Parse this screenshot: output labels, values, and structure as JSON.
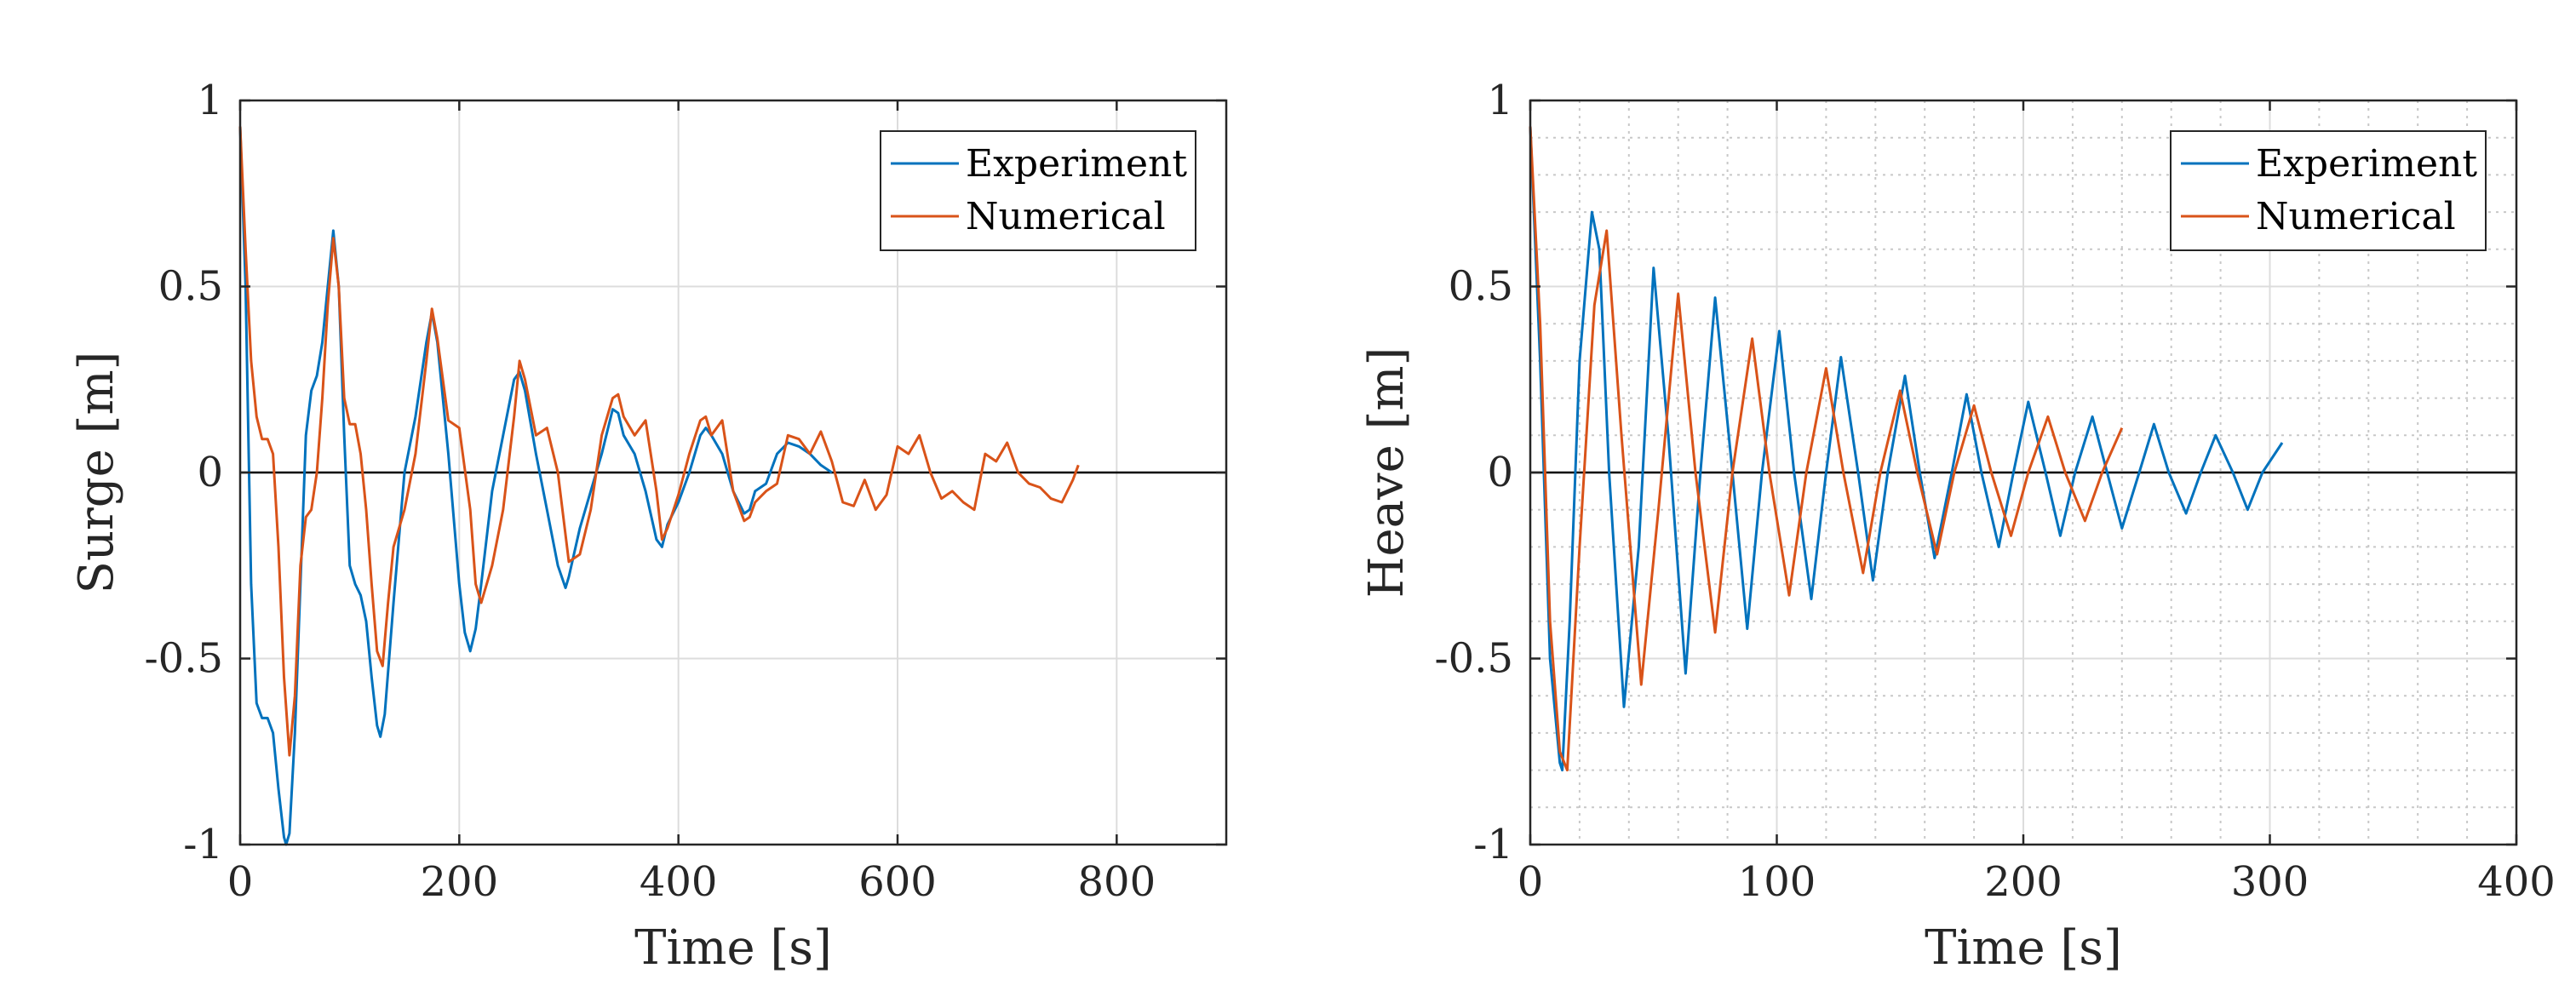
{
  "chart_data": [
    {
      "type": "line",
      "xlabel": "Time [s]",
      "ylabel": "Surge [m]",
      "xlim": [
        0,
        900
      ],
      "ylim": [
        -1,
        1
      ],
      "xticks": [
        0,
        200,
        400,
        600,
        800
      ],
      "yticks": [
        -1,
        -0.5,
        0,
        0.5,
        1
      ],
      "xtick_labels": [
        "0",
        "200",
        "400",
        "600",
        "800"
      ],
      "ytick_labels": [
        "-1",
        "-0.5",
        "0",
        "0.5",
        "1"
      ],
      "grid": "major",
      "legend_position": "top-right",
      "series": [
        {
          "name": "Experiment",
          "color": "#0072BD",
          "x": [
            0,
            5,
            10,
            15,
            20,
            25,
            30,
            35,
            40,
            42,
            45,
            50,
            55,
            60,
            65,
            70,
            75,
            80,
            85,
            90,
            95,
            100,
            105,
            110,
            115,
            120,
            125,
            128,
            132,
            140,
            150,
            160,
            170,
            175,
            180,
            190,
            200,
            205,
            210,
            215,
            220,
            230,
            240,
            250,
            255,
            260,
            270,
            280,
            290,
            297,
            300,
            310,
            320,
            330,
            340,
            345,
            350,
            360,
            370,
            380,
            385,
            390,
            400,
            410,
            420,
            425,
            430,
            440,
            450,
            460,
            465,
            470,
            480,
            490,
            500,
            510,
            520,
            530,
            540
          ],
          "y": [
            0.93,
            0.5,
            -0.3,
            -0.62,
            -0.66,
            -0.66,
            -0.7,
            -0.85,
            -0.98,
            -1.0,
            -0.97,
            -0.7,
            -0.3,
            0.1,
            0.22,
            0.26,
            0.35,
            0.5,
            0.65,
            0.5,
            0.1,
            -0.25,
            -0.3,
            -0.33,
            -0.4,
            -0.55,
            -0.68,
            -0.71,
            -0.65,
            -0.35,
            0.0,
            0.15,
            0.35,
            0.43,
            0.35,
            0.05,
            -0.3,
            -0.43,
            -0.48,
            -0.42,
            -0.3,
            -0.05,
            0.1,
            0.25,
            0.27,
            0.22,
            0.05,
            -0.1,
            -0.25,
            -0.31,
            -0.28,
            -0.15,
            -0.05,
            0.05,
            0.17,
            0.16,
            0.1,
            0.05,
            -0.05,
            -0.18,
            -0.2,
            -0.14,
            -0.08,
            0.0,
            0.1,
            0.12,
            0.1,
            0.05,
            -0.05,
            -0.11,
            -0.1,
            -0.05,
            -0.03,
            0.05,
            0.08,
            0.07,
            0.05,
            0.02,
            0.0
          ]
        },
        {
          "name": "Numerical",
          "color": "#D95319",
          "x": [
            0,
            5,
            10,
            15,
            20,
            25,
            30,
            35,
            40,
            45,
            50,
            55,
            60,
            65,
            70,
            75,
            80,
            85,
            90,
            95,
            100,
            105,
            110,
            115,
            120,
            125,
            130,
            135,
            140,
            150,
            160,
            170,
            175,
            180,
            190,
            200,
            210,
            215,
            220,
            230,
            240,
            250,
            255,
            260,
            270,
            280,
            290,
            300,
            310,
            320,
            330,
            340,
            345,
            350,
            360,
            370,
            380,
            385,
            390,
            400,
            410,
            420,
            425,
            430,
            440,
            450,
            460,
            465,
            470,
            480,
            490,
            500,
            510,
            520,
            530,
            540,
            550,
            560,
            570,
            580,
            590,
            600,
            610,
            620,
            630,
            640,
            650,
            660,
            670,
            680,
            690,
            700,
            710,
            720,
            730,
            740,
            750,
            760,
            765
          ],
          "y": [
            0.93,
            0.6,
            0.3,
            0.15,
            0.09,
            0.09,
            0.05,
            -0.2,
            -0.55,
            -0.76,
            -0.6,
            -0.25,
            -0.12,
            -0.1,
            0.0,
            0.2,
            0.45,
            0.63,
            0.5,
            0.2,
            0.13,
            0.13,
            0.05,
            -0.1,
            -0.3,
            -0.48,
            -0.52,
            -0.35,
            -0.2,
            -0.1,
            0.05,
            0.3,
            0.44,
            0.36,
            0.14,
            0.12,
            -0.1,
            -0.3,
            -0.35,
            -0.25,
            -0.1,
            0.15,
            0.3,
            0.25,
            0.1,
            0.12,
            0.0,
            -0.24,
            -0.22,
            -0.1,
            0.1,
            0.2,
            0.21,
            0.15,
            0.1,
            0.14,
            -0.05,
            -0.18,
            -0.15,
            -0.06,
            0.05,
            0.14,
            0.15,
            0.1,
            0.14,
            -0.05,
            -0.13,
            -0.12,
            -0.08,
            -0.05,
            -0.03,
            0.1,
            0.09,
            0.05,
            0.11,
            0.03,
            -0.08,
            -0.09,
            -0.02,
            -0.1,
            -0.06,
            0.07,
            0.05,
            0.1,
            0.0,
            -0.07,
            -0.05,
            -0.08,
            -0.1,
            0.05,
            0.03,
            0.08,
            0.0,
            -0.03,
            -0.04,
            -0.07,
            -0.08,
            -0.02,
            0.02
          ]
        }
      ]
    },
    {
      "type": "line",
      "xlabel": "Time [s]",
      "ylabel": "Heave [m]",
      "xlim": [
        0,
        400
      ],
      "ylim": [
        -1,
        1
      ],
      "xticks": [
        0,
        100,
        200,
        300,
        400
      ],
      "yticks": [
        -1,
        -0.5,
        0,
        0.5,
        1
      ],
      "xtick_labels": [
        "0",
        "100",
        "200",
        "300",
        "400"
      ],
      "ytick_labels": [
        "-1",
        "-0.5",
        "0",
        "0.5",
        "1"
      ],
      "grid": "major+minor",
      "legend_position": "top-right",
      "series": [
        {
          "name": "Experiment",
          "color": "#0072BD",
          "x": [
            0,
            4,
            8,
            12,
            13,
            16,
            20,
            25,
            28,
            32,
            38,
            44,
            50,
            56,
            63,
            69,
            75,
            82,
            88,
            94,
            101,
            107,
            114,
            120,
            126,
            133,
            139,
            145,
            152,
            158,
            164,
            171,
            177,
            183,
            190,
            196,
            202,
            209,
            215,
            221,
            228,
            234,
            240,
            247,
            253,
            259,
            266,
            272,
            278,
            285,
            291,
            297,
            305
          ],
          "y": [
            0.93,
            0.3,
            -0.5,
            -0.78,
            -0.8,
            -0.4,
            0.3,
            0.7,
            0.6,
            0.0,
            -0.63,
            -0.2,
            0.55,
            0.1,
            -0.54,
            0.0,
            0.47,
            0.0,
            -0.42,
            0.0,
            0.38,
            0.0,
            -0.34,
            0.0,
            0.31,
            0.0,
            -0.29,
            0.0,
            0.26,
            0.0,
            -0.23,
            0.0,
            0.21,
            0.0,
            -0.2,
            0.0,
            0.19,
            0.0,
            -0.17,
            0.0,
            0.15,
            0.0,
            -0.15,
            0.0,
            0.13,
            0.0,
            -0.11,
            0.0,
            0.1,
            0.0,
            -0.1,
            0.0,
            0.08
          ]
        },
        {
          "name": "Numerical",
          "color": "#D95319",
          "x": [
            0,
            4,
            8,
            12,
            15,
            20,
            26,
            31,
            37,
            45,
            52,
            60,
            67,
            75,
            82,
            90,
            97,
            105,
            112,
            120,
            127,
            135,
            142,
            150,
            157,
            165,
            172,
            180,
            187,
            195,
            202,
            210,
            217,
            225,
            232,
            240
          ],
          "y": [
            0.93,
            0.4,
            -0.4,
            -0.75,
            -0.8,
            -0.2,
            0.45,
            0.65,
            0.1,
            -0.57,
            -0.1,
            0.48,
            0.0,
            -0.43,
            0.0,
            0.36,
            0.0,
            -0.33,
            0.0,
            0.28,
            0.0,
            -0.27,
            0.0,
            0.22,
            0.0,
            -0.22,
            0.0,
            0.18,
            0.0,
            -0.17,
            0.0,
            0.15,
            0.0,
            -0.13,
            0.0,
            0.12
          ]
        }
      ]
    }
  ]
}
